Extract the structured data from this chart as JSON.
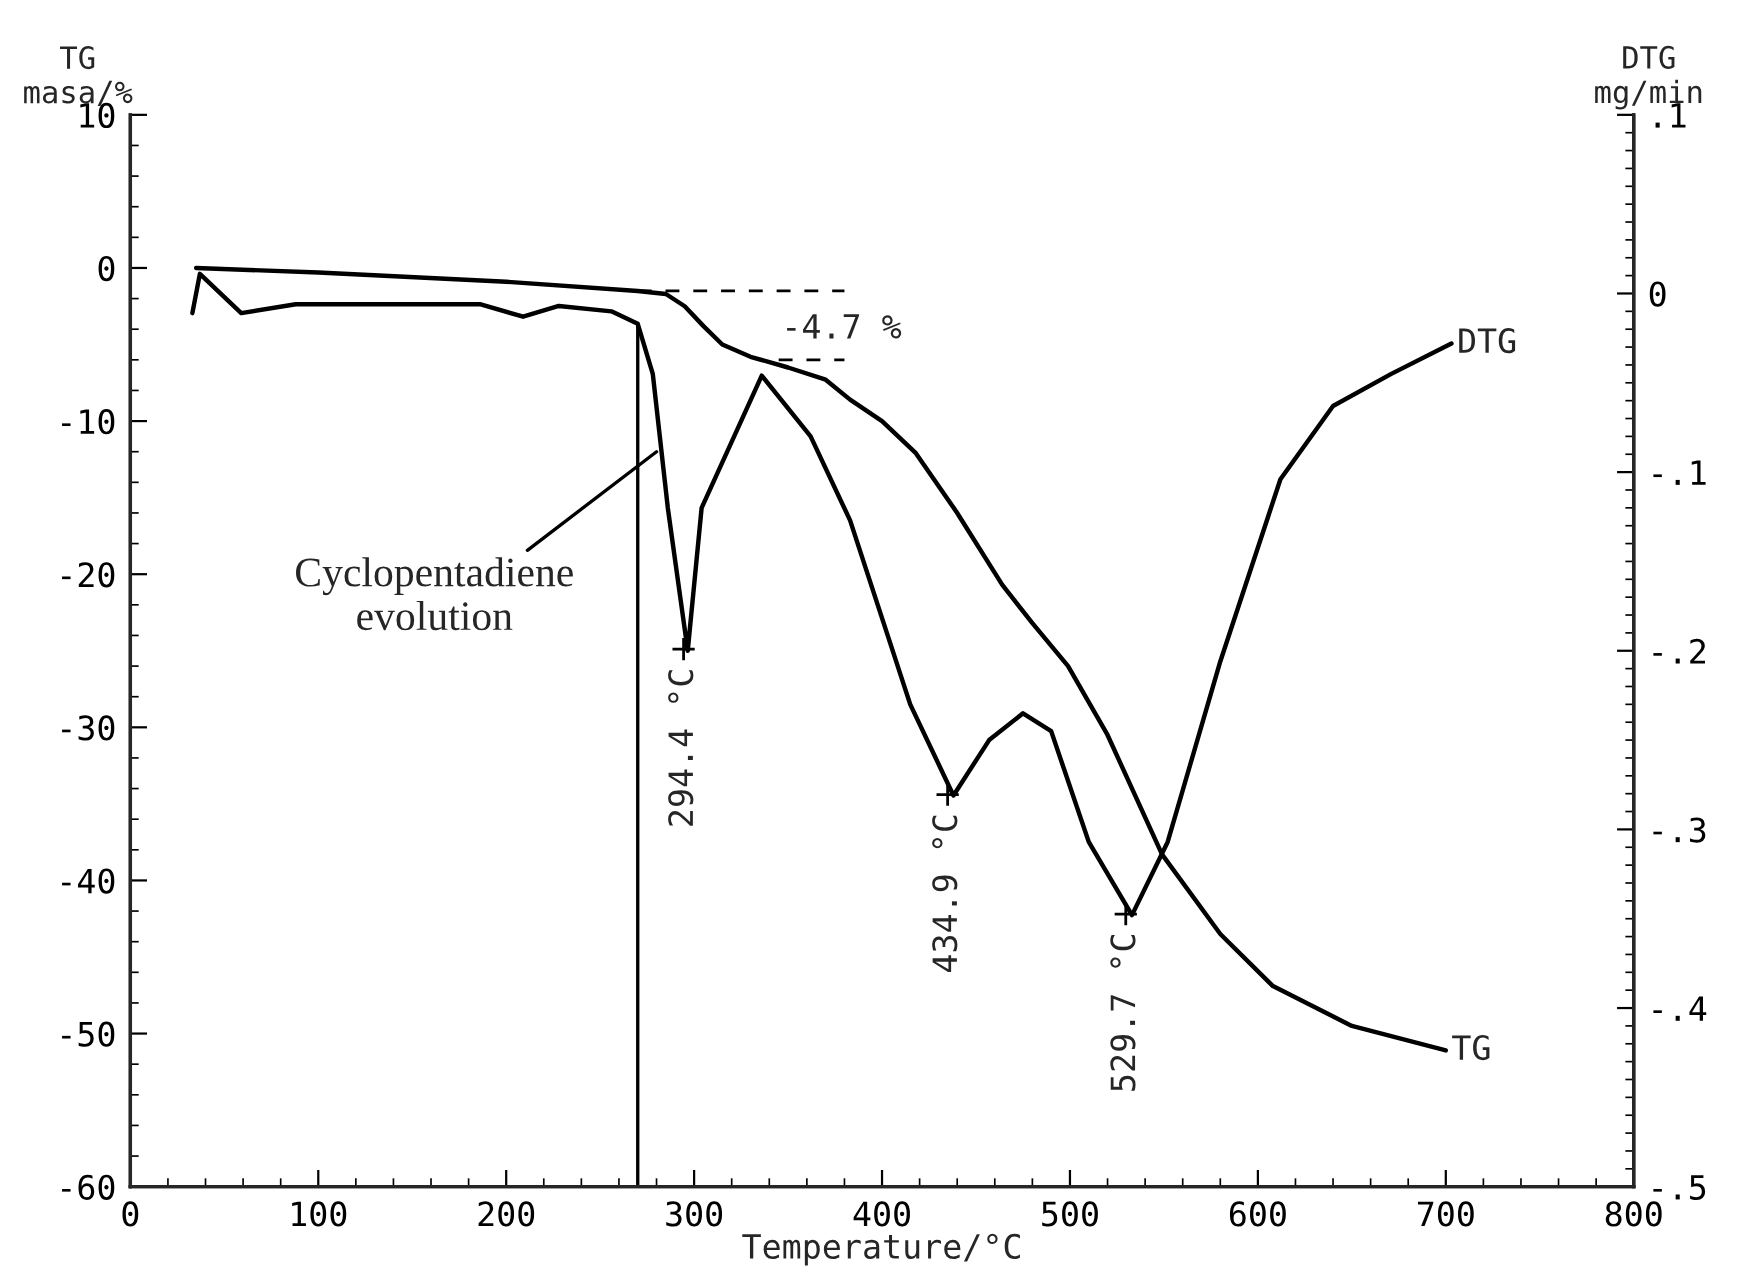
{
  "chart_data": {
    "type": "line",
    "xlabel": "Temperature/°C",
    "ylabel": "TG\nmasa/%",
    "y2label": "DTG\nmg/min",
    "xlim": [
      0,
      800
    ],
    "xticks": [
      0,
      100,
      200,
      300,
      400,
      500,
      600,
      700,
      800
    ],
    "ylim": [
      -60,
      10
    ],
    "yticks": [
      -60,
      -50,
      -40,
      -30,
      -20,
      -10,
      0,
      10
    ],
    "y2lim": [
      -0.5,
      0.1
    ],
    "y2ticks": [
      {
        "value": -0.5,
        "label": "-.5"
      },
      {
        "value": -0.4,
        "label": "-.4"
      },
      {
        "value": -0.3,
        "label": "-.3"
      },
      {
        "value": -0.2,
        "label": "-.2"
      },
      {
        "value": -0.1,
        "label": "-.1"
      },
      {
        "value": 0,
        "label": "0"
      },
      {
        "value": 0.1,
        "label": ".1"
      }
    ],
    "grid": false,
    "legend": false,
    "line_style": "solid",
    "marker": "none",
    "series": [
      {
        "name": "TG",
        "color": "#000000",
        "x": [
          35,
          100,
          200,
          270,
          285,
          295,
          305,
          315,
          330,
          350,
          370,
          383,
          400,
          418,
          440,
          464,
          480,
          499,
          520,
          549,
          580,
          608,
          650,
          700
        ],
        "values": [
          0,
          -0.3,
          -0.9,
          -1.5,
          -1.7,
          -2.5,
          -3.8,
          -5,
          -5.8,
          -6.5,
          -7.3,
          -8.6,
          -10,
          -12.1,
          -16,
          -20.7,
          -23.2,
          -26,
          -30.5,
          -38.3,
          -43.5,
          -46.9,
          -49.5,
          -51.1
        ]
      },
      {
        "name": "DTG",
        "color": "#000000",
        "axis": "y2",
        "x": [
          33,
          37,
          59,
          88,
          186,
          209,
          228,
          256,
          270,
          278,
          286,
          296.6,
          304,
          336,
          362,
          383,
          415,
          438,
          457,
          475,
          490,
          510,
          533,
          552,
          580,
          612,
          640,
          671,
          703
        ],
        "values": [
          -0.011,
          0.011,
          -0.011,
          -0.006,
          -0.006,
          -0.013,
          -0.007,
          -0.01,
          -0.017,
          -0.045,
          -0.12,
          -0.2,
          -0.12,
          -0.046,
          -0.08,
          -0.127,
          -0.23,
          -0.281,
          -0.25,
          -0.235,
          -0.245,
          -0.307,
          -0.348,
          -0.307,
          -0.206,
          -0.104,
          -0.063,
          -0.045,
          -0.028
        ]
      },
      {
        "type": "line",
        "line_style": "dashed",
        "color": "#000000",
        "x": [
          270,
          380
        ],
        "values": [
          -1.5,
          -1.5
        ]
      },
      {
        "type": "line",
        "line_style": "dashed",
        "color": "#000000",
        "x": [
          345,
          380
        ],
        "values": [
          -6,
          -6
        ]
      }
    ],
    "ref_lines": [
      {
        "axis": "x",
        "value": 270,
        "color": "#000000"
      }
    ],
    "annotations": [
      "-4.7 %",
      {
        "text": "Cyclopentadiene\nevolution",
        "x": 280,
        "y": -12
      },
      {
        "text": "294.4 °C",
        "x": 294.4,
        "y": -24.9
      },
      {
        "text": "434.9 °C",
        "x": 434.9,
        "y": -34.4
      },
      {
        "text": "529.7 °C",
        "x": 529.7,
        "y": -42.2
      }
    ]
  }
}
